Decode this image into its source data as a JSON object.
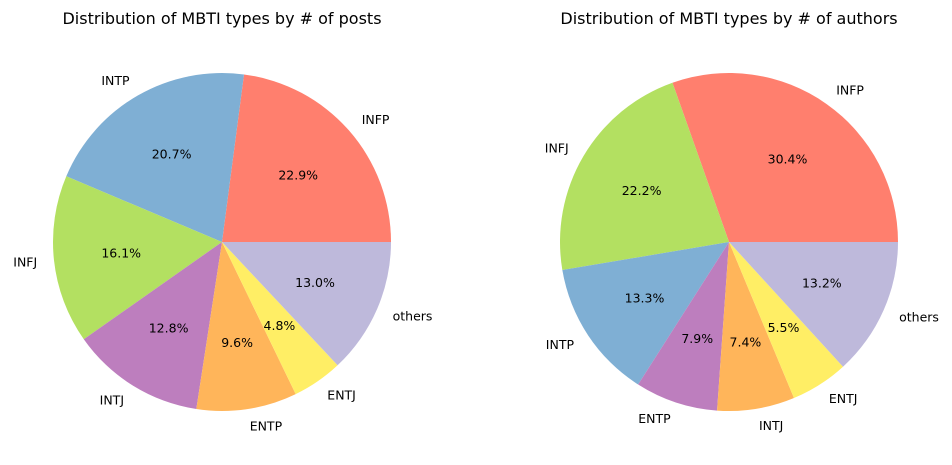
{
  "chart_data": [
    {
      "type": "pie",
      "title": "Distribution of MBTI types by # of posts",
      "start_angle_deg": 0,
      "direction": "counterclockwise",
      "slices": [
        {
          "label": "INFP",
          "pct_label": "22.9%",
          "value": 22.9,
          "color": "#ff7f6e"
        },
        {
          "label": "INTP",
          "pct_label": "20.7%",
          "value": 20.7,
          "color": "#7fafd4"
        },
        {
          "label": "INFJ",
          "pct_label": "16.1%",
          "value": 16.1,
          "color": "#b3e061"
        },
        {
          "label": "INTJ",
          "pct_label": "12.8%",
          "value": 12.8,
          "color": "#bd7ebe"
        },
        {
          "label": "ENTP",
          "pct_label": "9.6%",
          "value": 9.6,
          "color": "#ffb55a"
        },
        {
          "label": "ENTJ",
          "pct_label": "4.8%",
          "value": 4.8,
          "color": "#ffee65"
        },
        {
          "label": "others",
          "pct_label": "13.0%",
          "value": 13.0,
          "color": "#beb9db"
        }
      ]
    },
    {
      "type": "pie",
      "title": "Distribution of MBTI types by # of authors",
      "start_angle_deg": 0,
      "direction": "counterclockwise",
      "slices": [
        {
          "label": "INFP",
          "pct_label": "30.4%",
          "value": 30.4,
          "color": "#ff7f6e"
        },
        {
          "label": "INFJ",
          "pct_label": "22.2%",
          "value": 22.2,
          "color": "#b3e061"
        },
        {
          "label": "INTP",
          "pct_label": "13.3%",
          "value": 13.3,
          "color": "#7fafd4"
        },
        {
          "label": "ENTP",
          "pct_label": "7.9%",
          "value": 7.9,
          "color": "#bd7ebe"
        },
        {
          "label": "INTJ",
          "pct_label": "7.4%",
          "value": 7.4,
          "color": "#ffb55a"
        },
        {
          "label": "ENTJ",
          "pct_label": "5.5%",
          "value": 5.5,
          "color": "#ffee65"
        },
        {
          "label": "others",
          "pct_label": "13.2%",
          "value": 13.2,
          "color": "#beb9db"
        }
      ]
    }
  ]
}
